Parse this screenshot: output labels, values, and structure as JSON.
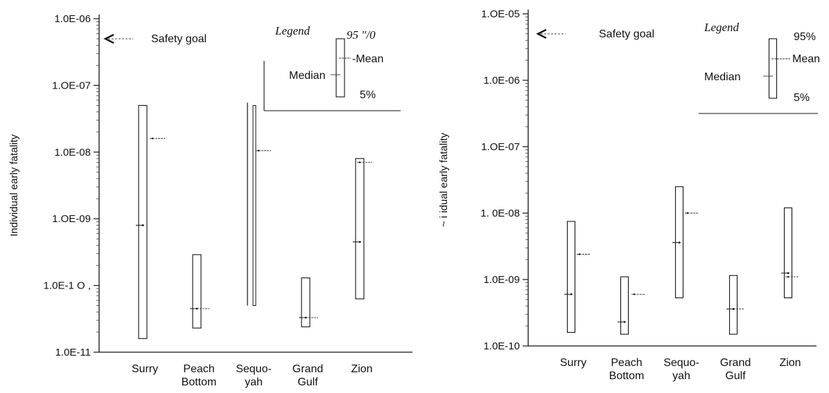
{
  "chart_data": [
    {
      "type": "box",
      "ylabel": "Individual early fatality",
      "yscale": "log",
      "ylim": [
        1e-11,
        1e-06
      ],
      "ytick_values": [
        1e-11,
        1e-10,
        1e-09,
        1e-08,
        1e-07,
        1e-06
      ],
      "ytick_labels": [
        "1.0E-11",
        "1.0E-1 O ,",
        "1.OE-09",
        "1.0E-08",
        "1.OE-07",
        "1.0E-06"
      ],
      "categories": [
        "Surry",
        "Peach\nBottom",
        "Sequo-\nyah",
        "Grand\nGulf",
        "Zion"
      ],
      "category_lines": [
        [
          "Surry"
        ],
        [
          "Peach",
          "Bottom"
        ],
        [
          "Sequo-",
          "yah"
        ],
        [
          "Grand",
          "Gulf"
        ],
        [
          "Zion"
        ]
      ],
      "boxes": [
        {
          "p5": 1.6e-11,
          "p95": 5e-08,
          "median": 8e-10,
          "mean": 1.6e-08
        },
        {
          "p5": 2.3e-11,
          "p95": 2.9e-10,
          "median": 4.5e-11,
          "mean": 4.5e-11
        },
        {
          "p5": 5e-11,
          "p95": 5e-08,
          "median": null,
          "mean": 1.05e-08
        },
        {
          "p5": 2.4e-11,
          "p95": 1.3e-10,
          "median": 3.3e-11,
          "mean": 3.3e-11
        },
        {
          "p5": 6.3e-11,
          "p95": 8e-09,
          "median": 4.5e-10,
          "mean": 7e-09
        }
      ],
      "safety_goal": {
        "value": 5e-07,
        "label": "Safety  goal"
      },
      "legend": {
        "title": "Legend",
        "top_label": "95 \"/0",
        "mean_label": "-Mean",
        "median_label": "Median",
        "bottom_label": "5%"
      }
    },
    {
      "type": "box",
      "ylabel": "~ i idual early fatality",
      "yscale": "log",
      "ylim": [
        1e-10,
        1e-05
      ],
      "ytick_values": [
        1e-10,
        1e-09,
        1e-08,
        1e-07,
        1e-06,
        1e-05
      ],
      "ytick_labels": [
        "1.0E-10",
        "1.0E-09",
        "1.  0E-08",
        "1.OE-07",
        "1.0E-06",
        "1.OE-05"
      ],
      "categories": [
        "Surry",
        "Peach\nBottom",
        "Sequo-\nyah",
        "Grand\nGulf",
        "Zion"
      ],
      "category_lines": [
        [
          "Surry"
        ],
        [
          "Peach",
          "Bottom"
        ],
        [
          "Sequo-",
          "yah"
        ],
        [
          "Grand",
          "Gulf"
        ],
        [
          "Zion"
        ]
      ],
      "boxes": [
        {
          "p5": 1.6e-10,
          "p95": 7.5e-09,
          "median": 6e-10,
          "mean": 2.4e-09
        },
        {
          "p5": 1.5e-10,
          "p95": 1.1e-09,
          "median": 2.3e-10,
          "mean": 6e-10
        },
        {
          "p5": 5.3e-10,
          "p95": 2.5e-08,
          "median": 3.6e-09,
          "mean": 1e-08
        },
        {
          "p5": 1.5e-10,
          "p95": 1.15e-09,
          "median": 3.6e-10,
          "mean": 3.6e-10
        },
        {
          "p5": 5.3e-10,
          "p95": 1.2e-08,
          "median": 1.25e-09,
          "mean": 1.1e-09
        }
      ],
      "safety_goal": {
        "value": 5e-06,
        "label": "Safety goal"
      },
      "legend": {
        "title": "Legend",
        "top_label": "95%",
        "mean_label": "Mean",
        "median_label": "Median",
        "bottom_label": "5%"
      }
    }
  ]
}
